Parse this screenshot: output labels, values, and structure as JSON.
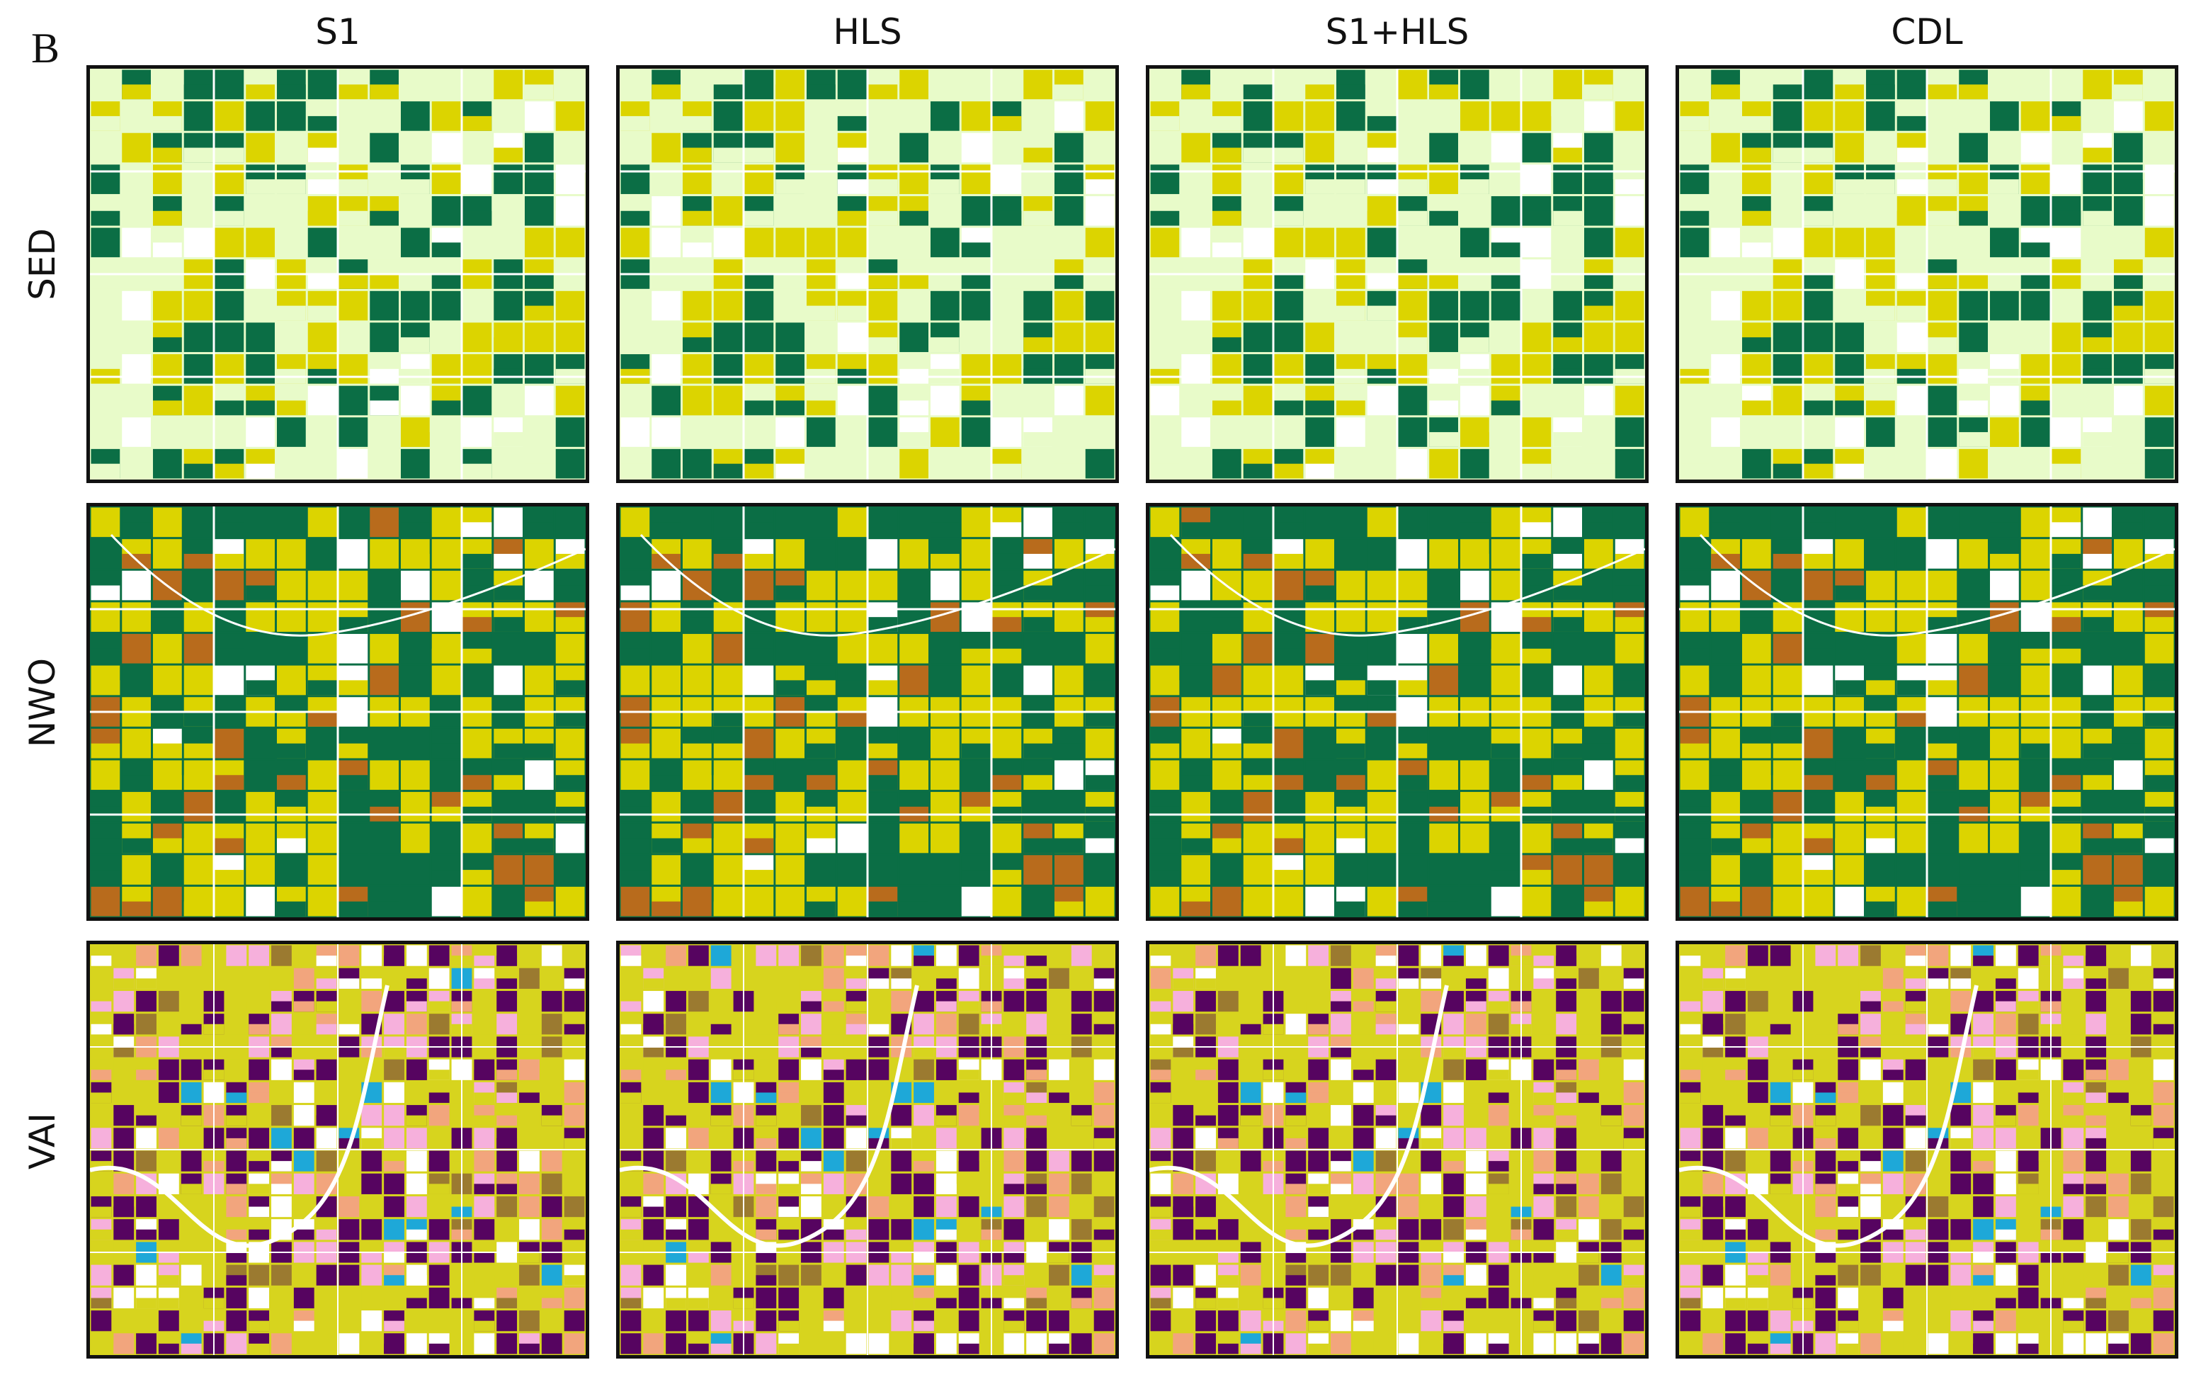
{
  "panel_letter": "B",
  "columns": [
    "S1",
    "HLS",
    "S1+HLS",
    "CDL"
  ],
  "rows": [
    "SED",
    "NWO",
    "VAI"
  ],
  "class_colors": {
    "dark-green": "#0b6e45",
    "yellow": "#dcd400",
    "pale-green": "#e8fbc9",
    "white": "#ffffff",
    "brown": "#b86b1c",
    "purple": "#560460",
    "pink": "#f6b0dc",
    "salmon": "#f2a57d",
    "olive-yellow": "#d7d41e",
    "cyan": "#1ea8d8",
    "olive-brown": "#9b7a30"
  },
  "row_palettes": {
    "SED": [
      "pale-green",
      "dark-green",
      "yellow",
      "white"
    ],
    "NWO": [
      "dark-green",
      "yellow",
      "brown",
      "white"
    ],
    "VAI": [
      "olive-yellow",
      "purple",
      "pink",
      "salmon",
      "white",
      "cyan",
      "olive-brown"
    ]
  }
}
